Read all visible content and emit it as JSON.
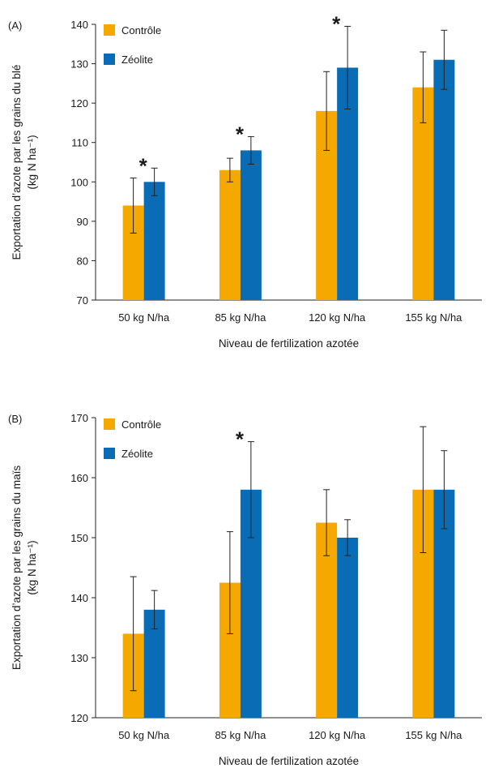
{
  "chart_data": [
    {
      "type": "bar",
      "panel_label": "(A)",
      "categories": [
        "50 kg N/ha",
        "85 kg N/ha",
        "120 kg N/ha",
        "155 kg N/ha"
      ],
      "series": [
        {
          "name": "Contrôle",
          "color": "#F5A800",
          "values": [
            94,
            103,
            118,
            124
          ],
          "errors": [
            7,
            3,
            10,
            9
          ]
        },
        {
          "name": "Zéolite",
          "color": "#0A6CB5",
          "values": [
            100,
            108,
            129,
            131
          ],
          "errors": [
            3.5,
            3.5,
            10.5,
            7.5
          ]
        }
      ],
      "significant": [
        true,
        true,
        true,
        false
      ],
      "significance_marker": "*",
      "xlabel": "Niveau de fertilization azotée",
      "ylabel_lines": [
        "Exportation d’azote par les grains du blé",
        "(kg N ha⁻¹)"
      ],
      "ylim": [
        70,
        140
      ],
      "yticks": [
        70,
        80,
        90,
        100,
        110,
        120,
        130,
        140
      ],
      "grid": false,
      "legend": "top-left"
    },
    {
      "type": "bar",
      "panel_label": "(B)",
      "categories": [
        "50 kg N/ha",
        "85 kg N/ha",
        "120 kg N/ha",
        "155 kg N/ha"
      ],
      "series": [
        {
          "name": "Contrôle",
          "color": "#F5A800",
          "values": [
            134,
            142.5,
            152.5,
            158
          ],
          "errors": [
            9.5,
            8.5,
            5.5,
            10.5
          ]
        },
        {
          "name": "Zéolite",
          "color": "#0A6CB5",
          "values": [
            138,
            158,
            150,
            158
          ],
          "errors": [
            3.2,
            8,
            3,
            6.5
          ]
        }
      ],
      "significant": [
        false,
        true,
        false,
        false
      ],
      "significance_marker": "*",
      "xlabel": "Niveau de fertilization azotée",
      "ylabel_lines": [
        "Exportation d’azote par les grains du maïs",
        "(kg N ha⁻¹)"
      ],
      "ylim": [
        120,
        170
      ],
      "yticks": [
        120,
        130,
        140,
        150,
        160,
        170
      ],
      "grid": false,
      "legend": "top-left"
    }
  ]
}
